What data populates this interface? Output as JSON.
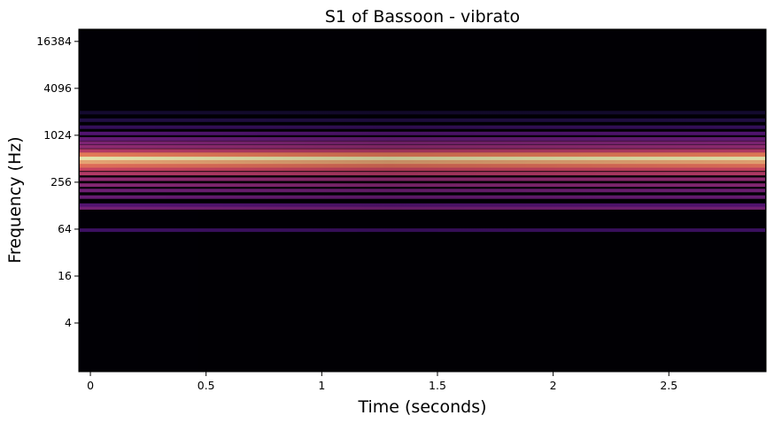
{
  "chart_data": {
    "type": "heatmap",
    "title": "S1 of Bassoon - vibrato",
    "xlabel": "Time (seconds)",
    "ylabel": "Frequency (Hz)",
    "xlim": [
      -0.05,
      2.92
    ],
    "ylim_hz": [
      0.95,
      23500
    ],
    "yscale": "log2",
    "colormap": "magma",
    "x_ticks": [
      {
        "value": 0,
        "label": "0"
      },
      {
        "value": 0.5,
        "label": "0.5"
      },
      {
        "value": 1,
        "label": "1"
      },
      {
        "value": 1.5,
        "label": "1.5"
      },
      {
        "value": 2,
        "label": "2"
      },
      {
        "value": 2.5,
        "label": "2.5"
      }
    ],
    "y_ticks": [
      {
        "value": 4,
        "label": "4"
      },
      {
        "value": 16,
        "label": "16"
      },
      {
        "value": 64,
        "label": "64"
      },
      {
        "value": 256,
        "label": "256"
      },
      {
        "value": 1024,
        "label": "1024"
      },
      {
        "value": 4096,
        "label": "4096"
      },
      {
        "value": 16384,
        "label": "16384"
      }
    ],
    "bands": [
      {
        "freq_hz": 62,
        "intensity": 0.22
      },
      {
        "freq_hz": 120,
        "intensity": 0.38
      },
      {
        "freq_hz": 130,
        "intensity": 0.28
      },
      {
        "freq_hz": 165,
        "intensity": 0.34
      },
      {
        "freq_hz": 200,
        "intensity": 0.36
      },
      {
        "freq_hz": 235,
        "intensity": 0.42
      },
      {
        "freq_hz": 280,
        "intensity": 0.45
      },
      {
        "freq_hz": 330,
        "intensity": 0.55
      },
      {
        "freq_hz": 375,
        "intensity": 0.6
      },
      {
        "freq_hz": 420,
        "intensity": 0.72
      },
      {
        "freq_hz": 470,
        "intensity": 0.85
      },
      {
        "freq_hz": 520,
        "intensity": 1.0
      },
      {
        "freq_hz": 580,
        "intensity": 0.75
      },
      {
        "freq_hz": 650,
        "intensity": 0.55
      },
      {
        "freq_hz": 730,
        "intensity": 0.45
      },
      {
        "freq_hz": 820,
        "intensity": 0.4
      },
      {
        "freq_hz": 920,
        "intensity": 0.33
      },
      {
        "freq_hz": 1080,
        "intensity": 0.28
      },
      {
        "freq_hz": 1300,
        "intensity": 0.2
      },
      {
        "freq_hz": 1600,
        "intensity": 0.15
      },
      {
        "freq_hz": 2000,
        "intensity": 0.1
      }
    ]
  }
}
